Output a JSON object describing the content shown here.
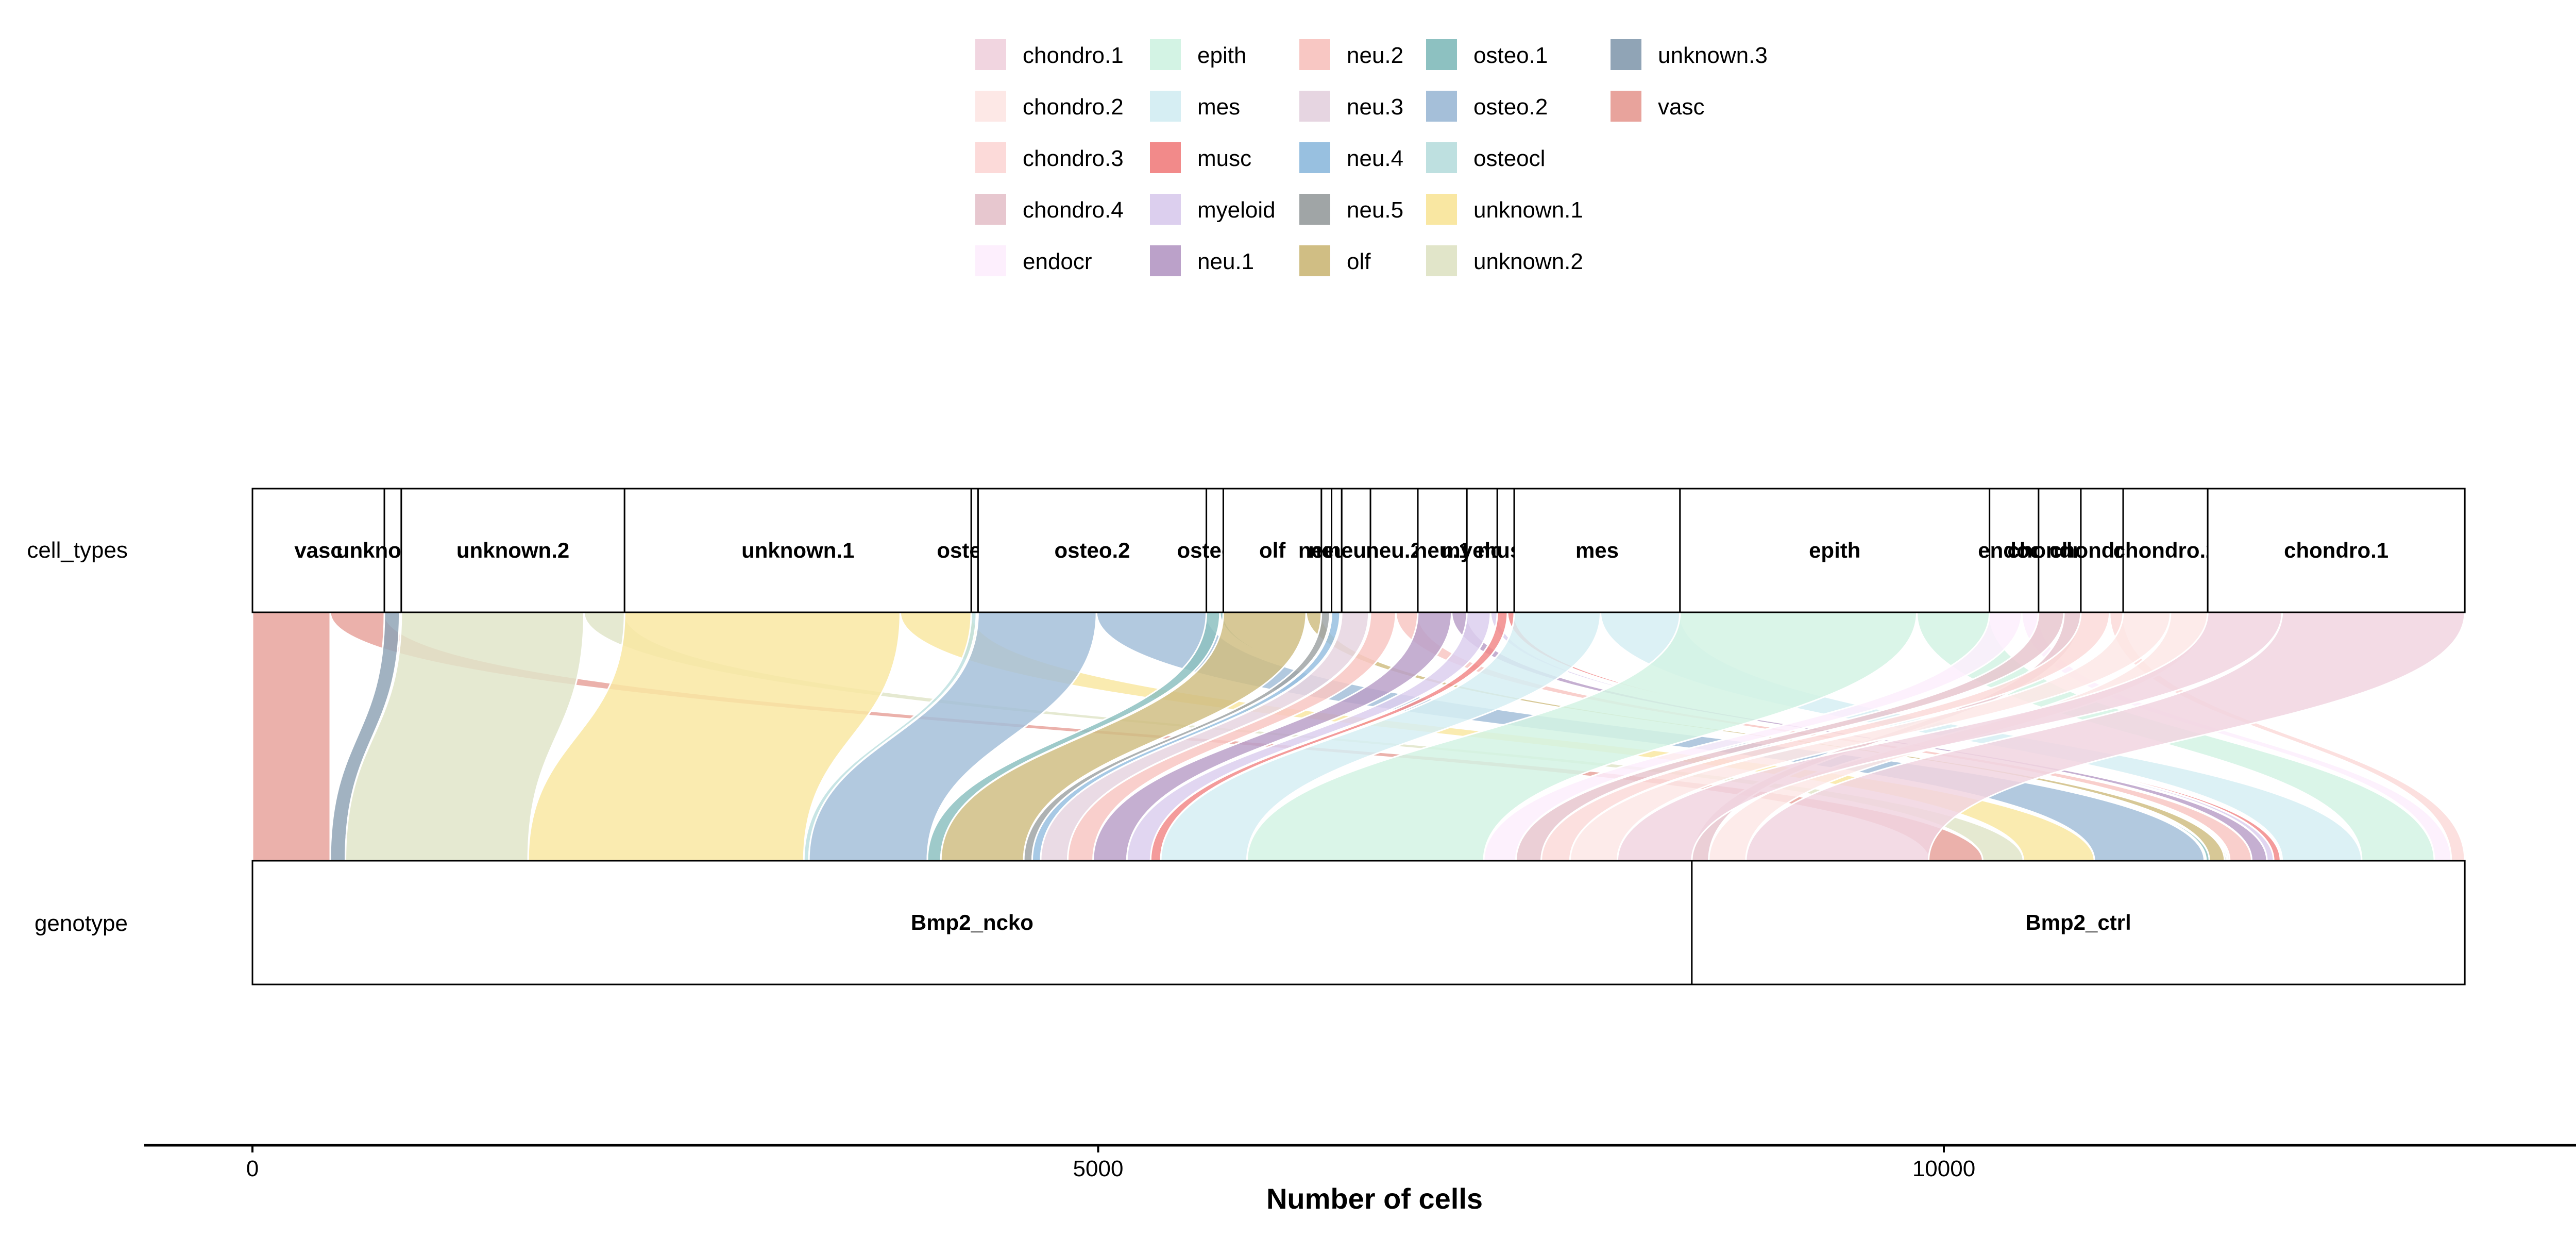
{
  "chart_data": {
    "type": "alluvial",
    "xlabel": "Number of cells",
    "axes": [
      "cell_types",
      "genotype"
    ],
    "x_ticks": [
      0,
      5000,
      10000
    ],
    "xlim": [
      -650,
      13870
    ],
    "total_cells": 13230,
    "legend": {
      "position": "top",
      "columns": [
        [
          "chondro.1",
          "chondro.2",
          "chondro.3",
          "chondro.4",
          "endocr"
        ],
        [
          "epith",
          "mes",
          "musc",
          "myeloid",
          "neu.1"
        ],
        [
          "neu.2",
          "neu.3",
          "neu.4",
          "neu.5",
          "olf"
        ],
        [
          "osteo.1",
          "osteo.2",
          "osteocl",
          "unknown.1",
          "unknown.2"
        ],
        [
          "unknown.3",
          "vasc"
        ]
      ]
    },
    "colors": {
      "chondro.1": "#F1D5E0",
      "chondro.2": "#FDE8E6",
      "chondro.3": "#FCDAD9",
      "chondro.4": "#E7C7CF",
      "endocr": "#FDEFFD",
      "epith": "#D3F3E4",
      "mes": "#D6EEF3",
      "musc": "#F28A8A",
      "myeloid": "#DCCFEE",
      "neu.1": "#BBA1C9",
      "neu.2": "#F8C7C3",
      "neu.3": "#E6D5E1",
      "neu.4": "#98C0E0",
      "neu.5": "#A0A5A6",
      "olf": "#D0BE84",
      "osteo.1": "#8DC1C1",
      "osteo.2": "#A5BFD9",
      "osteocl": "#BEE0E0",
      "unknown.1": "#F9E7A2",
      "unknown.2": "#E1E5C9",
      "unknown.3": "#90A4B6",
      "vasc": "#E8A39C"
    },
    "cell_types": [
      {
        "name": "vasc",
        "ncko": 460,
        "ctrl": 320
      },
      {
        "name": "unknown.3",
        "ncko": 90,
        "ctrl": 10
      },
      {
        "name": "unknown.2",
        "ncko": 1080,
        "ctrl": 240
      },
      {
        "name": "unknown.1",
        "ncko": 1630,
        "ctrl": 420
      },
      {
        "name": "osteocl",
        "ncko": 30,
        "ctrl": 10
      },
      {
        "name": "osteo.2",
        "ncko": 700,
        "ctrl": 650
      },
      {
        "name": "osteo.1",
        "ncko": 80,
        "ctrl": 20
      },
      {
        "name": "olf",
        "ncko": 490,
        "ctrl": 90
      },
      {
        "name": "neu.5",
        "ncko": 50,
        "ctrl": 10
      },
      {
        "name": "neu.4",
        "ncko": 50,
        "ctrl": 10
      },
      {
        "name": "neu.3",
        "ncko": 160,
        "ctrl": 10
      },
      {
        "name": "neu.2",
        "ncko": 150,
        "ctrl": 130
      },
      {
        "name": "neu.1",
        "ncko": 200,
        "ctrl": 90
      },
      {
        "name": "myeloid",
        "ncko": 140,
        "ctrl": 40
      },
      {
        "name": "musc",
        "ncko": 60,
        "ctrl": 40
      },
      {
        "name": "mes",
        "ncko": 510,
        "ctrl": 470
      },
      {
        "name": "epith",
        "ncko": 1400,
        "ctrl": 430
      },
      {
        "name": "endocr",
        "ncko": 190,
        "ctrl": 100
      },
      {
        "name": "chondro.4",
        "ncko": 150,
        "ctrl": 100
      },
      {
        "name": "chondro.3",
        "ncko": 170,
        "ctrl": 80
      },
      {
        "name": "chondro.2",
        "ncko": 280,
        "ctrl": 220
      },
      {
        "name": "chondro.1",
        "ncko": 440,
        "ctrl": 1080
      }
    ],
    "genotypes": [
      {
        "name": "Bmp2_ncko",
        "key": "ncko",
        "order": [
          "vasc",
          "unknown.3",
          "unknown.2",
          "unknown.1",
          "osteocl",
          "osteo.2",
          "osteo.1",
          "olf",
          "neu.5",
          "neu.4",
          "neu.3",
          "neu.2",
          "neu.1",
          "myeloid",
          "musc",
          "mes",
          "epith",
          "endocr",
          "chondro.4",
          "chondro.3",
          "chondro.2",
          "chondro.1"
        ]
      },
      {
        "name": "Bmp2_ctrl",
        "key": "ctrl",
        "order": [
          "chondro.4",
          "chondro.2",
          "chondro.1",
          "vasc",
          "unknown.2",
          "unknown.1",
          "osteo.2",
          "osteocl",
          "osteo.1",
          "olf",
          "neu.5",
          "neu.4",
          "neu.3",
          "neu.2",
          "neu.1",
          "myeloid",
          "musc",
          "unknown.3",
          "mes",
          "epith",
          "endocr",
          "chondro.3"
        ]
      }
    ]
  }
}
